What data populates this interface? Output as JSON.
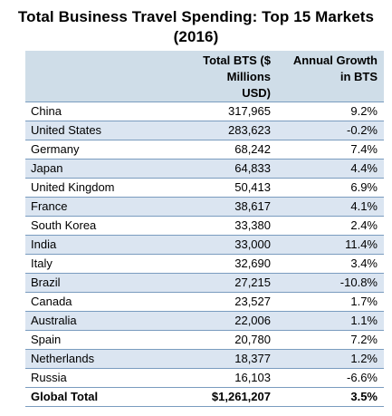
{
  "title": {
    "line1": "Total Business Travel Spending: Top 15 Markets",
    "line2": "(2016)"
  },
  "chart_data": {
    "type": "table",
    "columns": [
      "",
      "Total BTS ($ Millions USD)",
      "Annual Growth in BTS"
    ],
    "header_lines": {
      "bts": [
        "Total BTS ($",
        "Millions",
        "USD)"
      ],
      "growth": [
        "Annual Growth",
        "in BTS"
      ]
    },
    "rows": [
      {
        "country": "China",
        "bts": "317,965",
        "growth": "9.2%"
      },
      {
        "country": "United States",
        "bts": "283,623",
        "growth": "-0.2%"
      },
      {
        "country": "Germany",
        "bts": "68,242",
        "growth": "7.4%"
      },
      {
        "country": "Japan",
        "bts": "64,833",
        "growth": "4.4%"
      },
      {
        "country": "United Kingdom",
        "bts": "50,413",
        "growth": "6.9%"
      },
      {
        "country": "France",
        "bts": "38,617",
        "growth": "4.1%"
      },
      {
        "country": "South Korea",
        "bts": "33,380",
        "growth": "2.4%"
      },
      {
        "country": "India",
        "bts": "33,000",
        "growth": "11.4%"
      },
      {
        "country": "Italy",
        "bts": "32,690",
        "growth": "3.4%"
      },
      {
        "country": "Brazil",
        "bts": "27,215",
        "growth": "-10.8%"
      },
      {
        "country": "Canada",
        "bts": "23,527",
        "growth": "1.7%"
      },
      {
        "country": "Australia",
        "bts": "22,006",
        "growth": "1.1%"
      },
      {
        "country": "Spain",
        "bts": "20,780",
        "growth": "7.2%"
      },
      {
        "country": "Netherlands",
        "bts": "18,377",
        "growth": "1.2%"
      },
      {
        "country": "Russia",
        "bts": "16,103",
        "growth": "-6.6%"
      }
    ],
    "total": {
      "country": "Global Total",
      "bts": "$1,261,207",
      "growth": "3.5%"
    }
  },
  "colors": {
    "header_fill": "#cfdde8",
    "band_fill": "#dbe5f1",
    "rule": "#7a9cbf"
  }
}
